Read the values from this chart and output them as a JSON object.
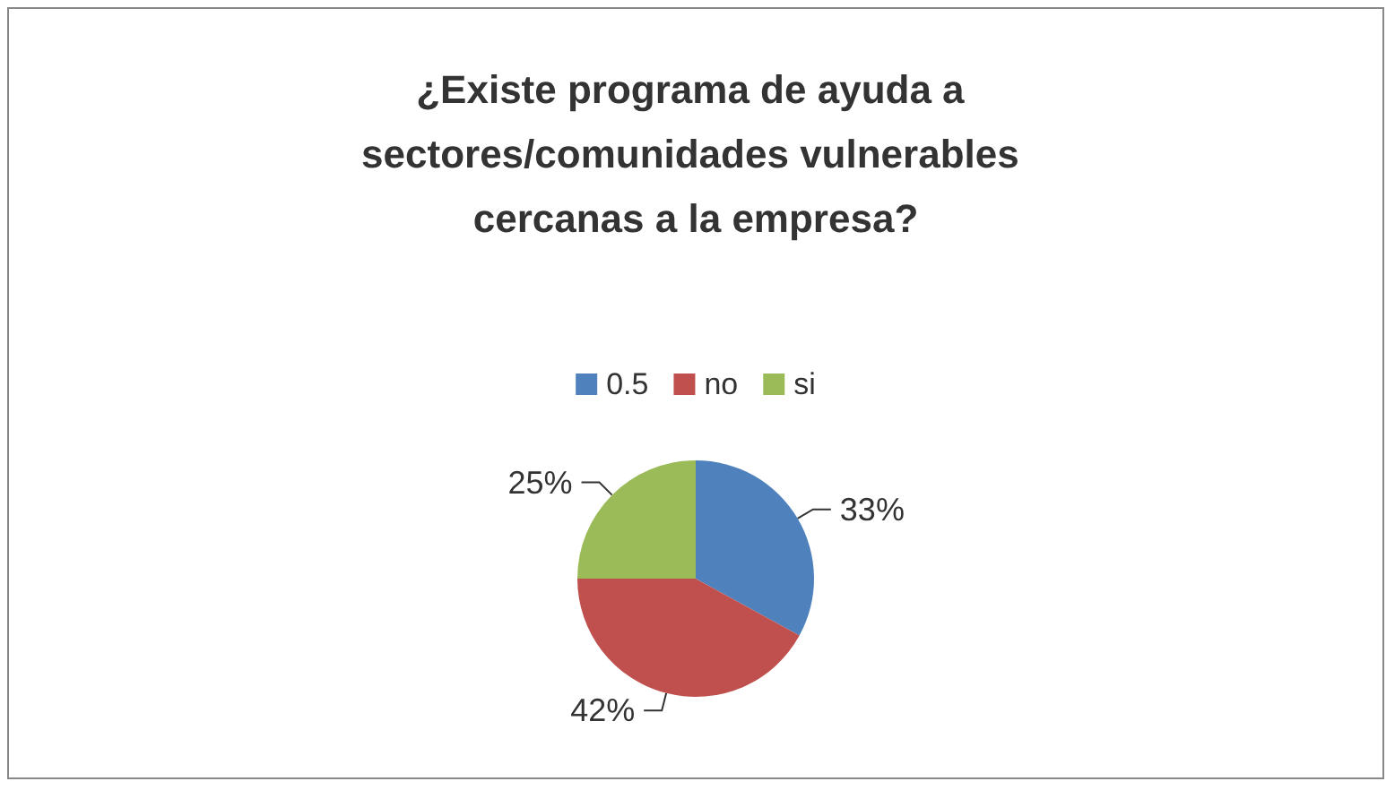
{
  "chart_data": {
    "type": "pie",
    "title": "¿Existe programa de ayuda a sectores/comunidades vulnerables cercanas a la empresa?",
    "categories": [
      "0.5",
      "no",
      "si"
    ],
    "values": [
      33,
      42,
      25
    ],
    "colors": [
      "#4f81bd",
      "#c0504d",
      "#9bbb59"
    ],
    "value_labels": [
      "33%",
      "42%",
      "25%"
    ],
    "legend": "top"
  }
}
